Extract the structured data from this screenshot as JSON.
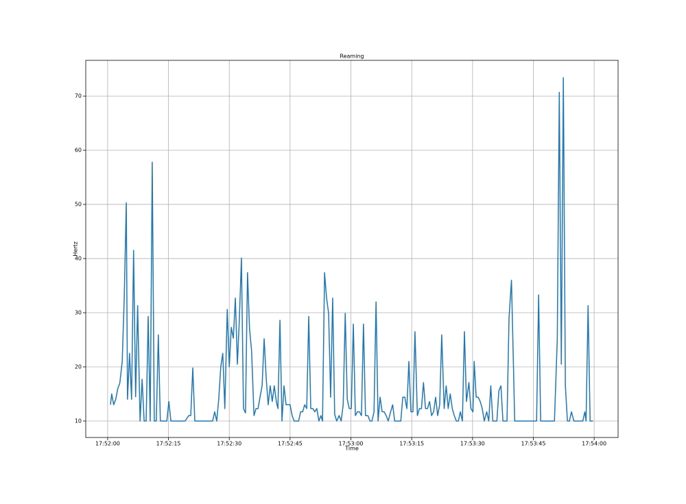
{
  "chart_data": {
    "type": "line",
    "title": "Reaming",
    "xlabel": "Time",
    "ylabel": "Hertz",
    "xlim": [
      -5.4,
      125.9
    ],
    "ylim": [
      6.96,
      76.6
    ],
    "xticks": [
      {
        "value": 0,
        "label": "17:52:00"
      },
      {
        "value": 15,
        "label": "17:52:15"
      },
      {
        "value": 30,
        "label": "17:52:30"
      },
      {
        "value": 45,
        "label": "17:52:45"
      },
      {
        "value": 60,
        "label": "17:53:00"
      },
      {
        "value": 75,
        "label": "17:53:15"
      },
      {
        "value": 90,
        "label": "17:53:30"
      },
      {
        "value": 105,
        "label": "17:53:45"
      },
      {
        "value": 120,
        "label": "17:54:00"
      }
    ],
    "yticks": [
      10,
      20,
      30,
      40,
      50,
      60,
      70
    ],
    "grid": true,
    "x": [
      0.7,
      1.0,
      1.5,
      2.0,
      2.5,
      3.0,
      3.6,
      4.1,
      4.6,
      4.9,
      5.4,
      5.9,
      6.4,
      6.9,
      7.4,
      8.0,
      8.5,
      9.0,
      9.5,
      10.0,
      10.5,
      11.0,
      11.5,
      12.0,
      12.5,
      13.0,
      13.5,
      14.6,
      15.1,
      15.6,
      16.6,
      19.1,
      20.0,
      20.5,
      21.0,
      21.5,
      23.4,
      25.9,
      26.4,
      26.9,
      27.4,
      27.9,
      28.4,
      28.9,
      29.5,
      30.0,
      30.5,
      31.0,
      31.5,
      32.0,
      32.5,
      33.0,
      33.5,
      34.0,
      34.5,
      35.0,
      35.5,
      36.1,
      36.6,
      37.1,
      37.6,
      38.1,
      38.6,
      39.1,
      39.6,
      40.1,
      40.6,
      41.1,
      41.6,
      42.0,
      42.5,
      43.0,
      43.5,
      44.0,
      44.5,
      45.0,
      45.5,
      46.0,
      46.5,
      47.1,
      47.6,
      48.1,
      48.6,
      49.1,
      49.6,
      50.1,
      50.6,
      51.1,
      51.6,
      52.1,
      52.6,
      53.0,
      53.5,
      54.0,
      54.5,
      55.0,
      55.5,
      56.0,
      56.5,
      57.1,
      57.6,
      58.1,
      58.6,
      59.1,
      59.6,
      60.1,
      60.6,
      61.1,
      61.6,
      62.1,
      62.6,
      63.1,
      63.6,
      64.2,
      64.7,
      65.2,
      65.7,
      66.2,
      66.7,
      67.2,
      67.7,
      68.2,
      68.7,
      69.2,
      69.8,
      70.3,
      70.8,
      71.3,
      72.3,
      72.8,
      73.3,
      73.8,
      74.3,
      74.8,
      75.3,
      75.8,
      76.4,
      76.9,
      77.4,
      77.9,
      78.4,
      78.9,
      79.4,
      79.9,
      80.4,
      80.9,
      81.4,
      81.9,
      82.4,
      83.0,
      83.5,
      84.0,
      84.5,
      85.0,
      85.5,
      86.0,
      86.5,
      87.0,
      87.5,
      88.0,
      88.5,
      89.1,
      89.6,
      90.1,
      90.4,
      90.9,
      91.4,
      91.9,
      92.4,
      92.9,
      93.5,
      94.0,
      94.5,
      95.0,
      95.5,
      96.0,
      96.5,
      97.0,
      97.5,
      98.0,
      98.5,
      99.0,
      99.6,
      100.1,
      100.4,
      102.1,
      103.8,
      105.5,
      105.8,
      106.3,
      106.8,
      108.9,
      110.2,
      110.9,
      111.4,
      111.9,
      112.4,
      112.9,
      113.4,
      113.9,
      114.4,
      115.0,
      115.6,
      116.5,
      117.2,
      117.7,
      118.0,
      118.5,
      119.0,
      119.7
    ],
    "series": [
      {
        "name": "Hertz",
        "color": "#1f77b4",
        "values": [
          13,
          15,
          13,
          14,
          16,
          17,
          21,
          33,
          50.3,
          14,
          22.5,
          14,
          41.5,
          14.5,
          31.3,
          10,
          17.7,
          10,
          10,
          29.3,
          10,
          57.8,
          10,
          10,
          25.9,
          10,
          10,
          10,
          13.6,
          10,
          10,
          10,
          11,
          11,
          19.8,
          10,
          10,
          10,
          11.7,
          10,
          14,
          20,
          22.5,
          12.3,
          30.6,
          20,
          27.3,
          25.3,
          32.7,
          20.5,
          29,
          40.1,
          12.3,
          11.5,
          37.4,
          27,
          23,
          11,
          12.3,
          12.3,
          14.5,
          16.5,
          25.2,
          18,
          13,
          16.5,
          13.6,
          16.5,
          13.6,
          12.3,
          28.6,
          10,
          16.5,
          13,
          13,
          13,
          11,
          10,
          10,
          10,
          11.7,
          11.7,
          13,
          12.3,
          29.3,
          12.3,
          12.3,
          11.7,
          12.3,
          10,
          11,
          10,
          37.4,
          32.7,
          29.9,
          14.4,
          32.7,
          11.2,
          10,
          11,
          10,
          13,
          29.9,
          14,
          12.3,
          12.3,
          27.9,
          11,
          11.7,
          11.7,
          11,
          27.9,
          11,
          11,
          10,
          10,
          11.7,
          32,
          10,
          14.4,
          11.7,
          11.7,
          11,
          10,
          11.7,
          13,
          10,
          10,
          10,
          14.4,
          14.4,
          12.3,
          21,
          11.7,
          11.7,
          26.5,
          11,
          12.3,
          12.3,
          17.1,
          12.3,
          12.3,
          13.6,
          11,
          11.7,
          14.4,
          11,
          13,
          25.9,
          12.3,
          16.5,
          12.3,
          15,
          12.3,
          11,
          10,
          10,
          11.7,
          10,
          26.5,
          13.6,
          17.1,
          12.3,
          11.7,
          21,
          14.4,
          14.4,
          13.6,
          12.3,
          10,
          11.7,
          10,
          16.5,
          10,
          10,
          10,
          15.6,
          16.5,
          10,
          10,
          10,
          29,
          36,
          20,
          10,
          10,
          10,
          10,
          10,
          33.3,
          10,
          10,
          10,
          25,
          70.7,
          20.5,
          73.4,
          16.5,
          10,
          10,
          11.7,
          10,
          10,
          10,
          10,
          11.7,
          10,
          31.3,
          10,
          10
        ]
      }
    ]
  }
}
